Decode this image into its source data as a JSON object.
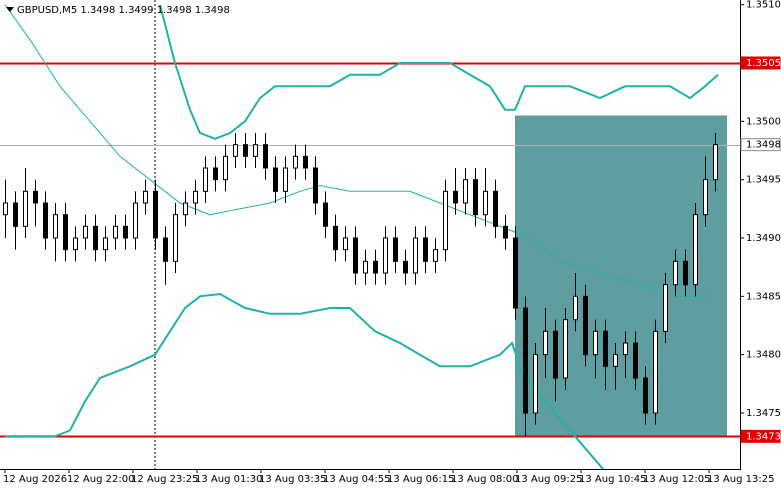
{
  "chart_data": {
    "type": "candlestick",
    "title": "GBPUSD,M5  1.3498 1.3499 1.3498 1.3498",
    "x": [
      0,
      1,
      2,
      3,
      4,
      5,
      6,
      7,
      8,
      9,
      10,
      11,
      12,
      13,
      14,
      15,
      16,
      17,
      18,
      19,
      20,
      21,
      22,
      23,
      24,
      25,
      26,
      27,
      28,
      29,
      30,
      31,
      32,
      33,
      34,
      35,
      36,
      37,
      38,
      39,
      40,
      41,
      42,
      43,
      44,
      45,
      46,
      47,
      48,
      49,
      50,
      51,
      52,
      53,
      54,
      55,
      56,
      57,
      58,
      59,
      60,
      61,
      62,
      63,
      64,
      65,
      66,
      67,
      68,
      69,
      70,
      71
    ],
    "open": [
      1.3492,
      1.3493,
      1.3491,
      1.3494,
      1.3493,
      1.349,
      1.3492,
      1.3489,
      1.349,
      1.3491,
      1.3489,
      1.349,
      1.3491,
      1.349,
      1.3493,
      1.3494,
      1.349,
      1.3488,
      1.3492,
      1.3493,
      1.3494,
      1.3496,
      1.3495,
      1.3497,
      1.3498,
      1.3497,
      1.3498,
      1.3496,
      1.3494,
      1.3496,
      1.3497,
      1.3496,
      1.3493,
      1.3491,
      1.3489,
      1.349,
      1.3487,
      1.3488,
      1.3487,
      1.349,
      1.3488,
      1.3487,
      1.349,
      1.3488,
      1.3489,
      1.3494,
      1.3493,
      1.3495,
      1.3492,
      1.3494,
      1.3491,
      1.349,
      1.3484,
      1.3475,
      1.348,
      1.3482,
      1.3478,
      1.3483,
      1.3485,
      1.348,
      1.3482,
      1.3479,
      1.348,
      1.3481,
      1.3478,
      1.3475,
      1.3482,
      1.3486,
      1.3488,
      1.3486,
      1.3492,
      1.3495
    ],
    "high": [
      1.3495,
      1.3494,
      1.3496,
      1.3495,
      1.3494,
      1.3493,
      1.3493,
      1.3491,
      1.3492,
      1.3492,
      1.3491,
      1.3492,
      1.3492,
      1.3494,
      1.3495,
      1.3495,
      1.3491,
      1.3493,
      1.3494,
      1.3495,
      1.3497,
      1.3497,
      1.3498,
      1.3499,
      1.3499,
      1.3499,
      1.3499,
      1.3497,
      1.3497,
      1.3498,
      1.3498,
      1.3497,
      1.3494,
      1.3492,
      1.3491,
      1.3491,
      1.3489,
      1.3489,
      1.3491,
      1.3491,
      1.3489,
      1.3491,
      1.3491,
      1.349,
      1.3495,
      1.3496,
      1.3496,
      1.3496,
      1.3496,
      1.3495,
      1.3492,
      1.3491,
      1.3485,
      1.3481,
      1.3484,
      1.3483,
      1.3484,
      1.3487,
      1.3486,
      1.3483,
      1.3483,
      1.3481,
      1.3482,
      1.3482,
      1.3479,
      1.3483,
      1.3487,
      1.3489,
      1.3489,
      1.3493,
      1.3497,
      1.3499
    ],
    "low": [
      1.349,
      1.3489,
      1.349,
      1.3491,
      1.3489,
      1.3488,
      1.3488,
      1.3488,
      1.3489,
      1.3488,
      1.3488,
      1.3489,
      1.3489,
      1.3489,
      1.3492,
      1.3489,
      1.3486,
      1.3487,
      1.3491,
      1.3492,
      1.3493,
      1.3494,
      1.3494,
      1.3496,
      1.3496,
      1.3496,
      1.3495,
      1.3493,
      1.3493,
      1.3495,
      1.3495,
      1.3492,
      1.349,
      1.3488,
      1.3488,
      1.3486,
      1.3486,
      1.3486,
      1.3486,
      1.3487,
      1.3486,
      1.3486,
      1.3487,
      1.3487,
      1.3488,
      1.3492,
      1.3492,
      1.3491,
      1.3491,
      1.349,
      1.3489,
      1.3483,
      1.3473,
      1.3474,
      1.3478,
      1.3476,
      1.3477,
      1.3482,
      1.3479,
      1.3478,
      1.3477,
      1.3477,
      1.3478,
      1.3477,
      1.3474,
      1.3474,
      1.3481,
      1.3485,
      1.3485,
      1.3485,
      1.3491,
      1.3494
    ],
    "close": [
      1.3493,
      1.3491,
      1.3494,
      1.3493,
      1.349,
      1.3492,
      1.3489,
      1.349,
      1.3491,
      1.3489,
      1.349,
      1.3491,
      1.349,
      1.3493,
      1.3494,
      1.349,
      1.3488,
      1.3492,
      1.3493,
      1.3494,
      1.3496,
      1.3495,
      1.3497,
      1.3498,
      1.3497,
      1.3498,
      1.3496,
      1.3494,
      1.3496,
      1.3497,
      1.3496,
      1.3493,
      1.3491,
      1.3489,
      1.349,
      1.3487,
      1.3488,
      1.3487,
      1.349,
      1.3488,
      1.3487,
      1.349,
      1.3488,
      1.3489,
      1.3494,
      1.3493,
      1.3495,
      1.3492,
      1.3494,
      1.3491,
      1.349,
      1.3484,
      1.3475,
      1.348,
      1.3482,
      1.3478,
      1.3483,
      1.3485,
      1.348,
      1.3482,
      1.3479,
      1.348,
      1.3481,
      1.3478,
      1.3475,
      1.3482,
      1.3486,
      1.3488,
      1.3486,
      1.3492,
      1.3495,
      1.3498
    ],
    "up_color": "#ffffff",
    "down_color": "#000000",
    "xlim": [
      -0.5,
      73.5
    ],
    "ylim": [
      1.34702,
      1.35104
    ],
    "yticks": [
      {
        "value": 1.351,
        "label": "1.3510"
      },
      {
        "value": 1.35,
        "label": "1.3500"
      },
      1.3495,
      {
        "value": 1.349,
        "label": "1.3490"
      },
      1.3485,
      {
        "value": 1.348,
        "label": "1.3480"
      },
      1.3475
    ],
    "xticks": [
      {
        "value": 0,
        "label": "12 Aug 2026"
      },
      {
        "value": 6.4,
        "label": "12 Aug 22:00"
      },
      {
        "value": 12.8,
        "label": "12 Aug 23:25"
      },
      {
        "value": 19.2,
        "label": "13 Aug 01:30"
      },
      {
        "value": 25.6,
        "label": "13 Aug 03:35"
      },
      {
        "value": 32,
        "label": "13 Aug 04:55"
      },
      {
        "value": 38.4,
        "label": "13 Aug 06:15"
      },
      {
        "value": 44.8,
        "label": "13 Aug 08:00"
      },
      {
        "value": 51.2,
        "label": "13 Aug 09:25"
      },
      {
        "value": 57.6,
        "label": "13 Aug 10:45"
      },
      {
        "value": 64,
        "label": "13 Aug 12:05"
      },
      {
        "value": 70.4,
        "label": "13 Aug 13:25"
      }
    ],
    "grid": false,
    "lines": [
      {
        "color": "#20b2aa",
        "width": 2,
        "x": [
          15.5,
          17,
          18.5,
          19.5,
          21,
          22.5,
          24,
          25.5,
          27,
          29.5,
          32.5,
          34.5,
          37.5,
          39.5,
          42.5,
          44.5,
          46.5,
          48.5,
          50,
          51,
          52,
          54,
          56.5,
          59.5,
          62,
          64.5,
          66.5,
          68.5,
          70,
          71.3
        ],
        "values": [
          1.351,
          1.3505,
          1.3501,
          1.3499,
          1.34985,
          1.3499,
          1.35,
          1.3502,
          1.3503,
          1.3503,
          1.3503,
          1.3504,
          1.3504,
          1.3505,
          1.3505,
          1.3505,
          1.3504,
          1.3503,
          1.3501,
          1.3501,
          1.3503,
          1.3503,
          1.3503,
          1.3502,
          1.3503,
          1.3503,
          1.3503,
          1.3502,
          1.3503,
          1.3504
        ]
      },
      {
        "color": "#20b2aa",
        "width": 2,
        "x": [
          0,
          3.5,
          5,
          6.5,
          8,
          9.5,
          12.5,
          15,
          16.5,
          18,
          19.5,
          21.5,
          24,
          26.5,
          29.5,
          32.5,
          34.5,
          37,
          39.5,
          41.5,
          43.5,
          46.5,
          49.5,
          50.7,
          51.5,
          53,
          55,
          57,
          59,
          60
        ],
        "values": [
          1.3473,
          1.3473,
          1.3473,
          1.34735,
          1.3476,
          1.3478,
          1.3479,
          1.348,
          1.3482,
          1.3484,
          1.3485,
          1.34852,
          1.3484,
          1.34835,
          1.34835,
          1.3484,
          1.3484,
          1.3482,
          1.3481,
          1.348,
          1.3479,
          1.3479,
          1.348,
          1.3481,
          1.3479,
          1.3477,
          1.3475,
          1.3473,
          1.3471,
          1.347
        ]
      },
      {
        "color": "#20b2aa",
        "width": 1,
        "x": [
          0,
          2.5,
          5.5,
          8.5,
          11.5,
          14.5,
          17.5,
          20.5,
          23.5,
          26.5,
          29.5,
          31.5,
          34.5,
          37.5,
          40.5,
          43.5,
          46.5,
          49.5,
          52.5,
          55.5,
          59.5,
          63.5,
          67.5,
          70.5
        ],
        "values": [
          1.351,
          1.3507,
          1.3503,
          1.35,
          1.3497,
          1.3495,
          1.3493,
          1.3492,
          1.34925,
          1.3493,
          1.3494,
          1.34945,
          1.3494,
          1.3494,
          1.3494,
          1.3493,
          1.3492,
          1.3491,
          1.349,
          1.3488,
          1.3487,
          1.3486,
          1.3485,
          1.3485
        ]
      }
    ],
    "levels": [
      {
        "value": 1.3505,
        "color": "#e00000",
        "label_fill": "#e00000",
        "label_color": "#ffffff"
      },
      {
        "value": 1.3473,
        "color": "#e00000",
        "label_fill": "#e00000",
        "label_color": "#ffffff"
      },
      {
        "value": 1.3498,
        "color": "#b0b0b0",
        "label_fill": "#ffffff",
        "label_color": "#000000"
      }
    ],
    "rectangle": {
      "x": [
        51,
        72.2
      ],
      "y": [
        1.35005,
        1.3473
      ],
      "color": "#5f9ea0"
    },
    "vline": {
      "x": 15
    }
  }
}
